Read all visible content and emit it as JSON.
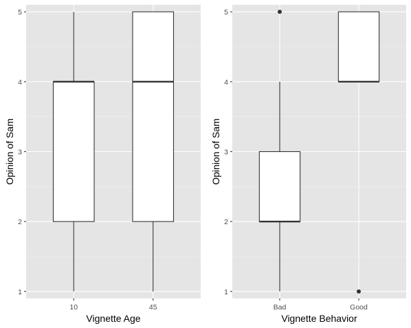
{
  "chart_data": [
    {
      "type": "boxplot",
      "xlabel": "Vignette Age",
      "ylabel": "Opinion of Sam",
      "ylim": [
        0.9,
        5.1
      ],
      "yticks": [
        1,
        2,
        3,
        4,
        5
      ],
      "grid": true,
      "categories": [
        "10",
        "45"
      ],
      "boxes": [
        {
          "category": "10",
          "min": 1,
          "q1": 2,
          "median": 4,
          "q3": 4,
          "max": 5,
          "outliers": []
        },
        {
          "category": "45",
          "min": 1,
          "q1": 2,
          "median": 4,
          "q3": 5,
          "max": 5,
          "outliers": []
        }
      ]
    },
    {
      "type": "boxplot",
      "xlabel": "Vignette Behavior",
      "ylabel": "Opinion of Sam",
      "ylim": [
        0.9,
        5.1
      ],
      "yticks": [
        1,
        2,
        3,
        4,
        5
      ],
      "grid": true,
      "categories": [
        "Bad",
        "Good"
      ],
      "boxes": [
        {
          "category": "Bad",
          "min": 1,
          "q1": 2,
          "median": 2,
          "q3": 3,
          "max": 4,
          "outliers": [
            5
          ]
        },
        {
          "category": "Good",
          "min": 4,
          "q1": 4,
          "median": 4,
          "q3": 5,
          "max": 5,
          "outliers": [
            1
          ]
        }
      ]
    }
  ]
}
